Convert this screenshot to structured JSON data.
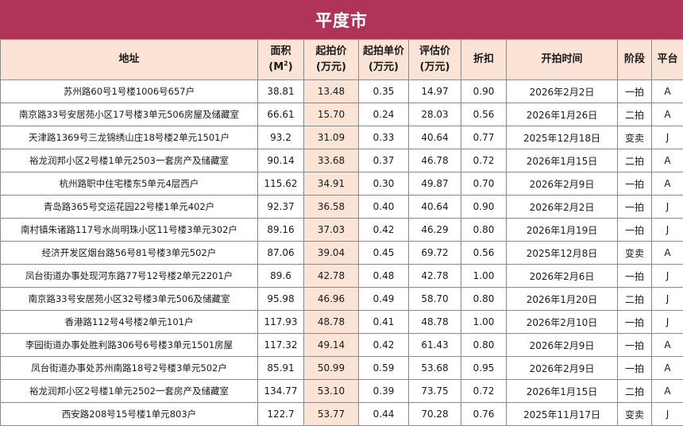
{
  "title": "平度市",
  "headers": {
    "address": "地址",
    "area_line1": "面积",
    "area_line2_pre": "(M",
    "area_sup": "2",
    "area_line2_post": ")",
    "start_price_line1": "起拍价",
    "start_price_line2": "(万元)",
    "unit_price_line1": "起拍单价",
    "unit_price_line2": "(万元)",
    "eval_price_line1": "评估价",
    "eval_price_line2": "(万元)",
    "discount": "折扣",
    "start_time": "开拍时间",
    "stage": "阶段",
    "platform": "平台"
  },
  "rows": [
    {
      "address": "苏州路60号1号楼1006号657户",
      "area": "38.81",
      "start_price": "13.48",
      "unit_price": "0.35",
      "eval_price": "14.97",
      "discount": "0.90",
      "start_time": "2026年2月2日",
      "stage": "一拍",
      "platform": "A"
    },
    {
      "address": "南京路33号安居苑小区17号楼3单元506房屋及储藏室",
      "area": "66.61",
      "start_price": "15.70",
      "unit_price": "0.24",
      "eval_price": "28.03",
      "discount": "0.56",
      "start_time": "2026年1月26日",
      "stage": "二拍",
      "platform": "A"
    },
    {
      "address": "天津路1369号三龙锦绣山庄18号楼2单元1501户",
      "area": "93.2",
      "start_price": "31.09",
      "unit_price": "0.33",
      "eval_price": "40.64",
      "discount": "0.77",
      "start_time": "2025年12月18日",
      "stage": "变卖",
      "platform": "J"
    },
    {
      "address": "裕龙润邦小区2号楼1单元2503一套房产及储藏室",
      "area": "90.14",
      "start_price": "33.68",
      "unit_price": "0.37",
      "eval_price": "46.78",
      "discount": "0.72",
      "start_time": "2026年1月15日",
      "stage": "二拍",
      "platform": "A"
    },
    {
      "address": "杭州路职中住宅楼东5单元4层西户",
      "area": "115.62",
      "start_price": "34.91",
      "unit_price": "0.30",
      "eval_price": "49.87",
      "discount": "0.70",
      "start_time": "2026年2月9日",
      "stage": "一拍",
      "platform": "A"
    },
    {
      "address": "青岛路365号交运花园22号楼1单元402户",
      "area": "92.37",
      "start_price": "36.58",
      "unit_price": "0.40",
      "eval_price": "40.64",
      "discount": "0.90",
      "start_time": "2026年2月2日",
      "stage": "一拍",
      "platform": "J"
    },
    {
      "address": "南村镇朱诸路117号水尚明珠小区11号楼3单元302户",
      "area": "89.16",
      "start_price": "37.03",
      "unit_price": "0.42",
      "eval_price": "46.29",
      "discount": "0.80",
      "start_time": "2026年1月19日",
      "stage": "一拍",
      "platform": "J"
    },
    {
      "address": "经济开发区烟台路56号81号楼3单元502户",
      "area": "87.06",
      "start_price": "39.04",
      "unit_price": "0.45",
      "eval_price": "69.72",
      "discount": "0.56",
      "start_time": "2025年12月8日",
      "stage": "变卖",
      "platform": "A"
    },
    {
      "address": "凤台街道办事处现河东路77号12号楼2单元2201户",
      "area": "89.6",
      "start_price": "42.78",
      "unit_price": "0.48",
      "eval_price": "42.78",
      "discount": "1.00",
      "start_time": "2026年2月6日",
      "stage": "一拍",
      "platform": "J"
    },
    {
      "address": "南京路33号安居苑小区32号楼3单元506及储藏室",
      "area": "95.98",
      "start_price": "46.96",
      "unit_price": "0.49",
      "eval_price": "58.70",
      "discount": "0.80",
      "start_time": "2026年1月20日",
      "stage": "二拍",
      "platform": "J"
    },
    {
      "address": "香港路112号4号楼2单元101户",
      "area": "117.93",
      "start_price": "48.78",
      "unit_price": "0.41",
      "eval_price": "48.78",
      "discount": "1.00",
      "start_time": "2026年2月10日",
      "stage": "一拍",
      "platform": "J"
    },
    {
      "address": "李园街道办事处胜利路306号6号楼3单元1501房屋",
      "area": "117.32",
      "start_price": "49.14",
      "unit_price": "0.42",
      "eval_price": "61.43",
      "discount": "0.80",
      "start_time": "2026年2月9日",
      "stage": "一拍",
      "platform": "A"
    },
    {
      "address": "凤台街道办事处苏州南路18号2号楼3单元502户",
      "area": "85.91",
      "start_price": "50.99",
      "unit_price": "0.59",
      "eval_price": "53.68",
      "discount": "0.95",
      "start_time": "2026年2月9日",
      "stage": "一拍",
      "platform": "A"
    },
    {
      "address": "裕龙润邦小区2号楼1单元2502一套房产及储藏室",
      "area": "134.77",
      "start_price": "53.10",
      "unit_price": "0.39",
      "eval_price": "73.75",
      "discount": "0.72",
      "start_time": "2026年1月15日",
      "stage": "二拍",
      "platform": "A"
    },
    {
      "address": "西安路208号15号楼1单元803户",
      "area": "122.7",
      "start_price": "53.77",
      "unit_price": "0.44",
      "eval_price": "70.28",
      "discount": "0.76",
      "start_time": "2025年11月17日",
      "stage": "变卖",
      "platform": "J"
    }
  ]
}
